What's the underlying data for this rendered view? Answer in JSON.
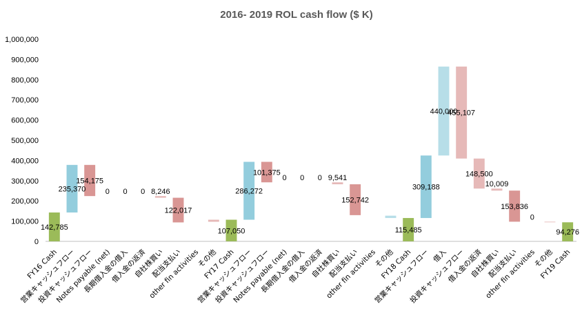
{
  "chart_data": {
    "type": "bar",
    "subtype": "waterfall",
    "title": "2016- 2019 ROL cash flow ($ K)",
    "xlabel": "",
    "ylabel": "",
    "ylim": [
      0,
      1000000
    ],
    "y_ticks": [
      "0",
      "100,000",
      "200,000",
      "300,000",
      "400,000",
      "500,000",
      "600,000",
      "700,000",
      "800,000",
      "900,000",
      "1,000,000"
    ],
    "grid": false,
    "legend": "none",
    "colors": {
      "total": "#9bbb59",
      "increase": "#93cddd",
      "decrease": "#d99694",
      "increase_light": "#b7dee8",
      "decrease_light": "#e6b9b8"
    },
    "bars": [
      {
        "category": "FY16 Cash",
        "bottom": 0,
        "top": 142785,
        "label": "142,785",
        "kind": "total"
      },
      {
        "category": "営業キャッシュフロー",
        "bottom": 142785,
        "top": 378155,
        "label": "235,370",
        "kind": "increase"
      },
      {
        "category": "投資キャッシュフロー",
        "bottom": 223980,
        "top": 378155,
        "label": "154,175",
        "kind": "decrease"
      },
      {
        "category": "Notes payable (net)",
        "bottom": 223980,
        "top": 223980,
        "label": "0",
        "kind": "increase"
      },
      {
        "category": "長期借入金の借入",
        "bottom": 223980,
        "top": 223980,
        "label": "0",
        "kind": "increase"
      },
      {
        "category": "借入金の返済",
        "bottom": 223980,
        "top": 223980,
        "label": "0",
        "kind": "decrease"
      },
      {
        "category": "自社株買い",
        "bottom": 215734,
        "top": 223980,
        "label": "8,246",
        "kind": "decrease_light"
      },
      {
        "category": "配当支払い",
        "bottom": 93717,
        "top": 215734,
        "label": "122,017",
        "kind": "decrease"
      },
      {
        "category": "other fin activities",
        "bottom": 93717,
        "top": 93717,
        "label": "",
        "kind": "decrease"
      },
      {
        "category": "その他",
        "bottom": 97000,
        "top": 107050,
        "label": "",
        "kind": "decrease_light"
      },
      {
        "category": "FY17 Cash",
        "bottom": 0,
        "top": 107050,
        "label": "107,050",
        "kind": "total"
      },
      {
        "category": "営業キャッシュフロー",
        "bottom": 107050,
        "top": 393322,
        "label": "286,272",
        "kind": "increase"
      },
      {
        "category": "投資キャッシュフロー",
        "bottom": 291947,
        "top": 393322,
        "label": "101,375",
        "kind": "decrease"
      },
      {
        "category": "Notes payable (net)",
        "bottom": 291947,
        "top": 291947,
        "label": "0",
        "kind": "increase"
      },
      {
        "category": "長期借入金の借入",
        "bottom": 291947,
        "top": 291947,
        "label": "0",
        "kind": "increase"
      },
      {
        "category": "借入金の返済",
        "bottom": 291947,
        "top": 291947,
        "label": "0",
        "kind": "decrease"
      },
      {
        "category": "自社株買い",
        "bottom": 282406,
        "top": 291947,
        "label": "9,541",
        "kind": "decrease_light"
      },
      {
        "category": "配当支払い",
        "bottom": 129664,
        "top": 282406,
        "label": "152,742",
        "kind": "decrease"
      },
      {
        "category": "other fin activities",
        "bottom": 129664,
        "top": 129664,
        "label": "",
        "kind": "decrease"
      },
      {
        "category": "その他",
        "bottom": 115485,
        "top": 127000,
        "label": "",
        "kind": "increase_light"
      },
      {
        "category": "FY18 Cash",
        "bottom": 0,
        "top": 115485,
        "label": "115,485",
        "kind": "total"
      },
      {
        "category": "営業キャッシュフロー",
        "bottom": 115485,
        "top": 424673,
        "label": "309,188",
        "kind": "increase"
      },
      {
        "category": "借入",
        "bottom": 424673,
        "top": 864673,
        "label": "440,000",
        "kind": "increase_light"
      },
      {
        "category": "投資キャッシュフロー",
        "bottom": 409566,
        "top": 864673,
        "label": "455,107",
        "kind": "decrease_light"
      },
      {
        "category": "借入金の返済",
        "bottom": 261066,
        "top": 409566,
        "label": "148,500",
        "kind": "decrease_light"
      },
      {
        "category": "自社株買い",
        "bottom": 251057,
        "top": 261066,
        "label": "10,009",
        "kind": "decrease_light"
      },
      {
        "category": "配当支払い",
        "bottom": 97221,
        "top": 251057,
        "label": "153,836",
        "kind": "decrease"
      },
      {
        "category": "other fin activities",
        "bottom": 97221,
        "top": 97221,
        "label": "0",
        "kind": "decrease"
      },
      {
        "category": "その他",
        "bottom": 94276,
        "top": 97221,
        "label": "",
        "kind": "decrease_light"
      },
      {
        "category": "FY19 Cash",
        "bottom": 0,
        "top": 94276,
        "label": "94,276",
        "kind": "total"
      }
    ]
  }
}
